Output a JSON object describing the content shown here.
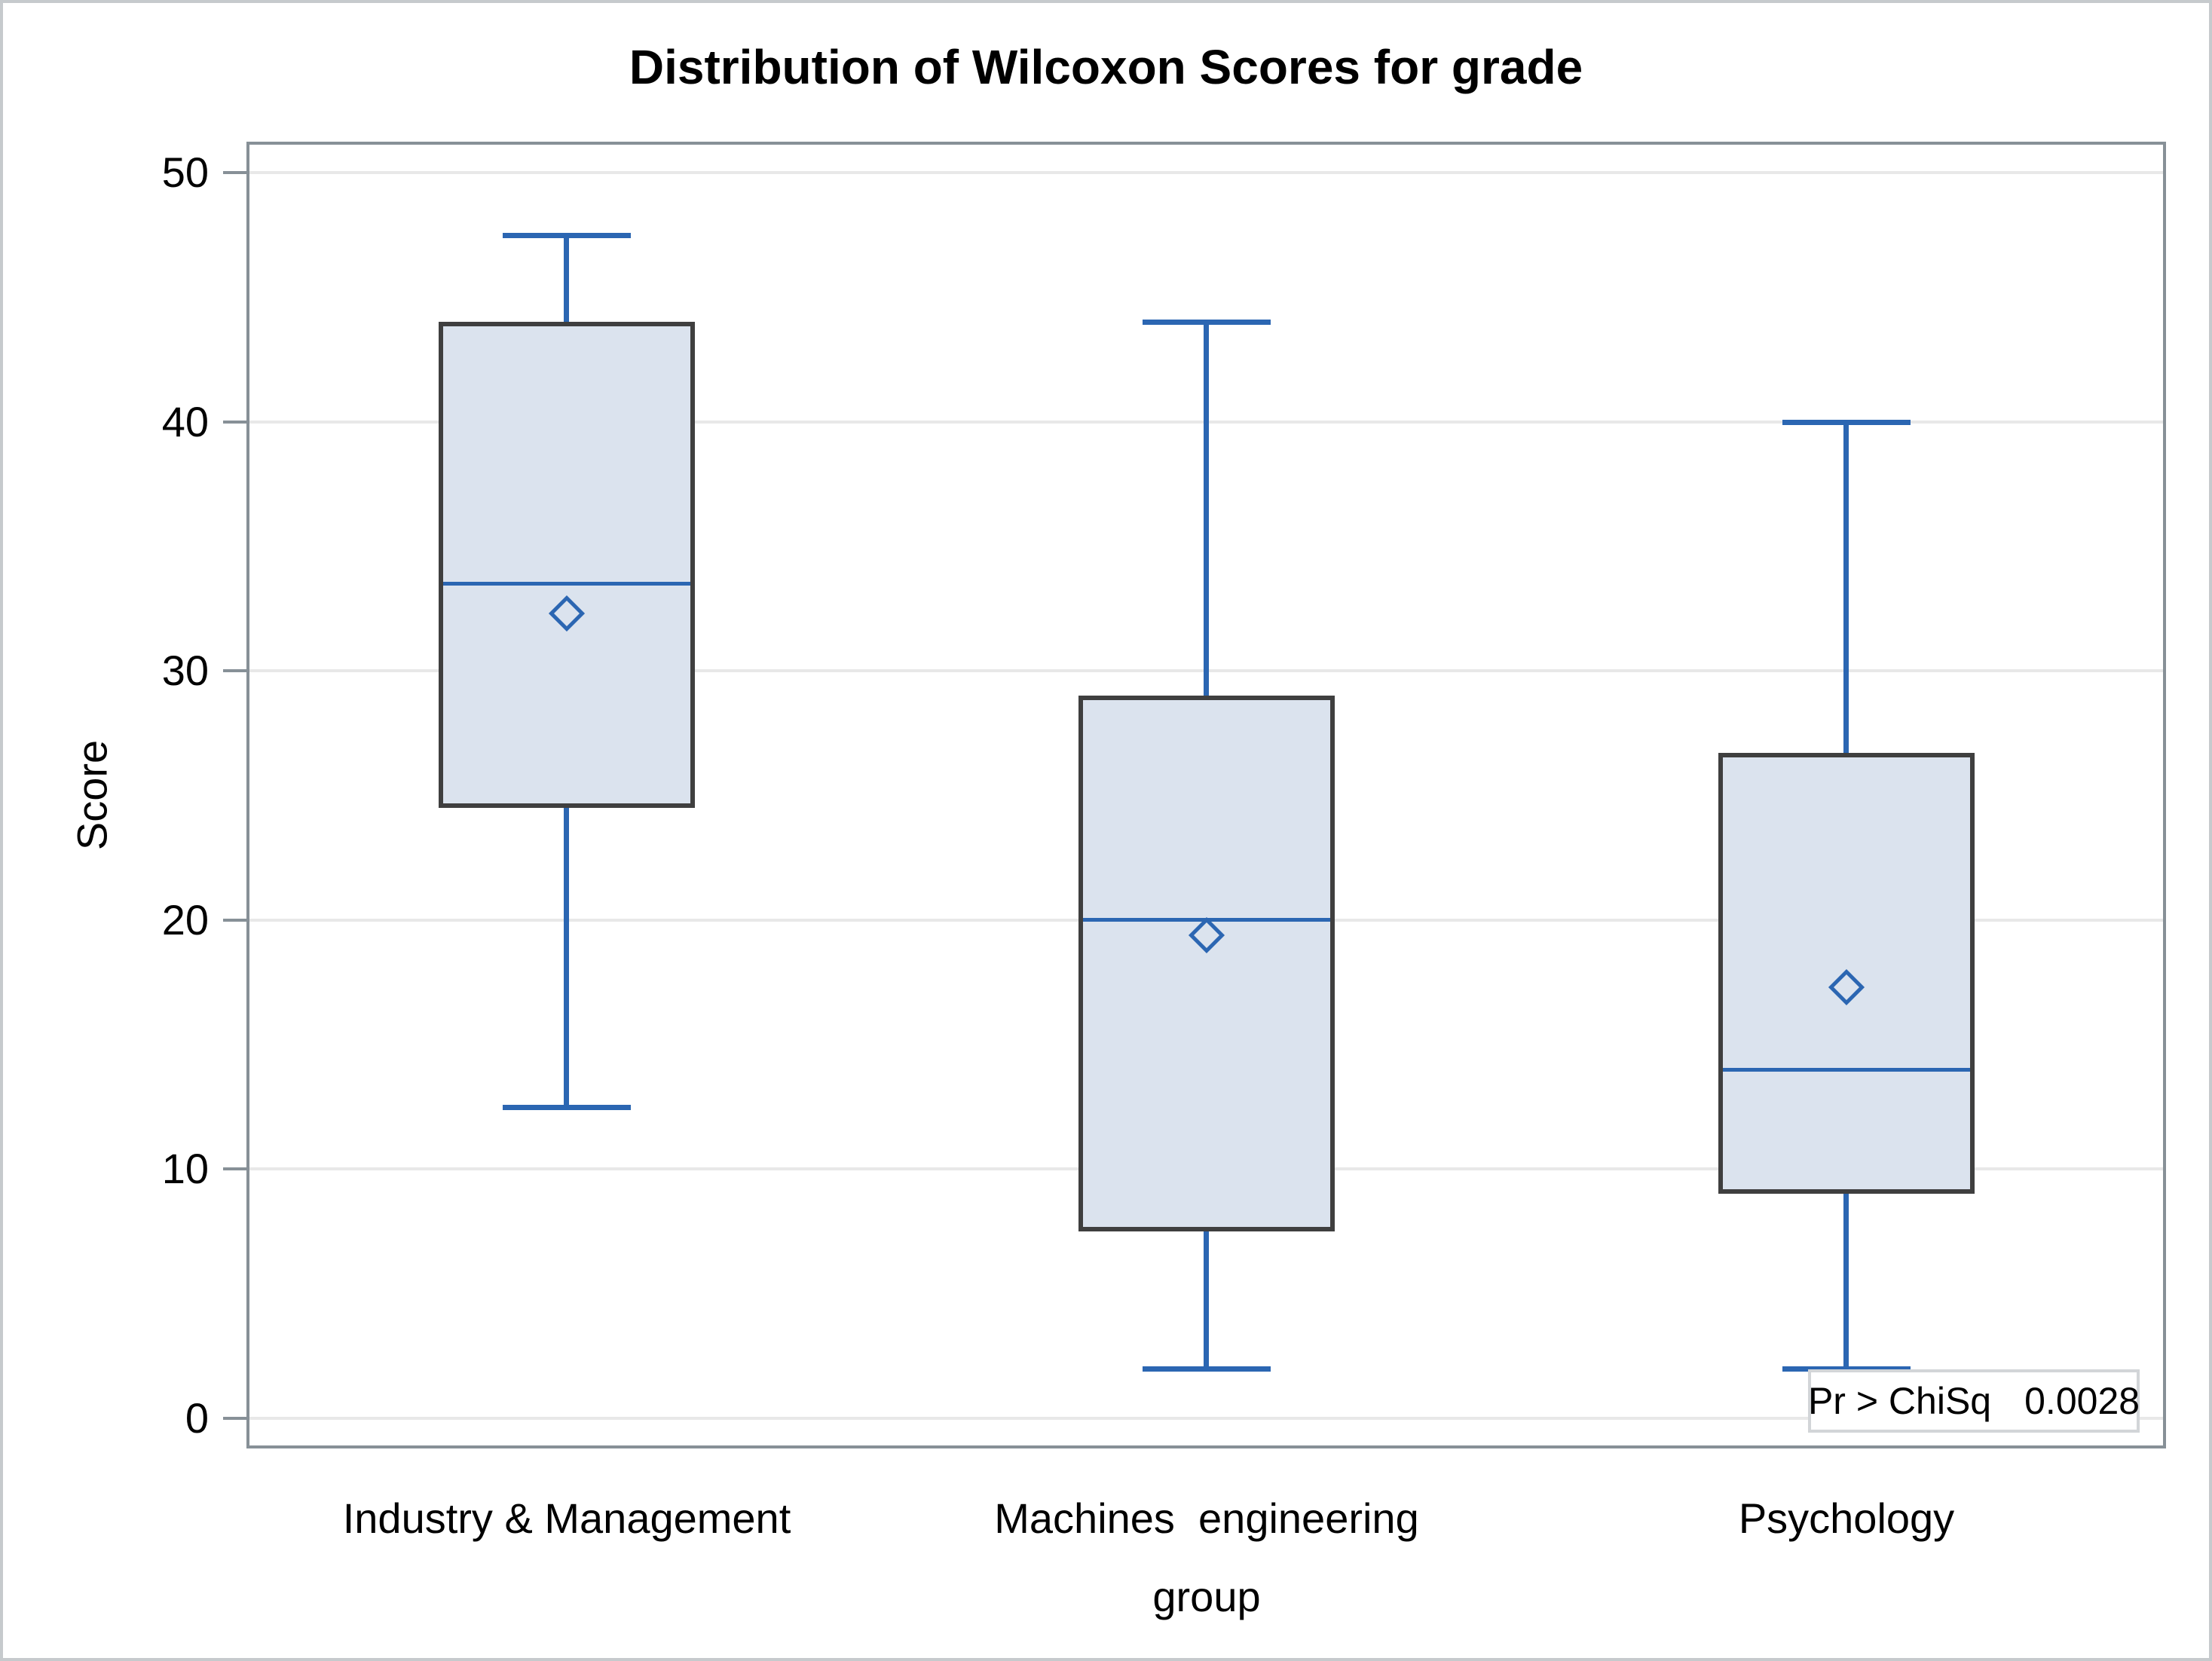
{
  "page": {
    "title": "Distribution of Wilcoxon Scores for grade"
  },
  "chart_data": {
    "type": "box",
    "title": "Distribution of Wilcoxon Scores for grade",
    "xlabel": "group",
    "ylabel": "Score",
    "ylim": [
      0,
      50
    ],
    "yticks": [
      0,
      10,
      20,
      30,
      40,
      50
    ],
    "grid": true,
    "categories": [
      "Industry & Management",
      "Machines  engineering",
      "Psychology"
    ],
    "series": [
      {
        "name": "Industry & Management",
        "min": 12.5,
        "q1": 24.5,
        "median": 33.5,
        "q3": 44,
        "max": 47.5,
        "mean": 32.3
      },
      {
        "name": "Machines  engineering",
        "min": 2,
        "q1": 7.5,
        "median": 20,
        "q3": 29,
        "max": 44,
        "mean": 19.4
      },
      {
        "name": "Psychology",
        "min": 2,
        "q1": 9,
        "median": 14,
        "q3": 26.7,
        "max": 40,
        "mean": 17.3
      }
    ],
    "annotation": {
      "label": "Pr > ChiSq",
      "value": "0.0028"
    },
    "colors": {
      "line_blue": "#2b66b2",
      "box_fill": "#dbe3ee",
      "box_border": "#3f3f3f",
      "grid": "#e8e8e8",
      "frame": "#879097",
      "text": "#000000",
      "inset_border": "#d2d5d8",
      "background": "#ffffff",
      "outer_border": "#c6cacd"
    }
  }
}
